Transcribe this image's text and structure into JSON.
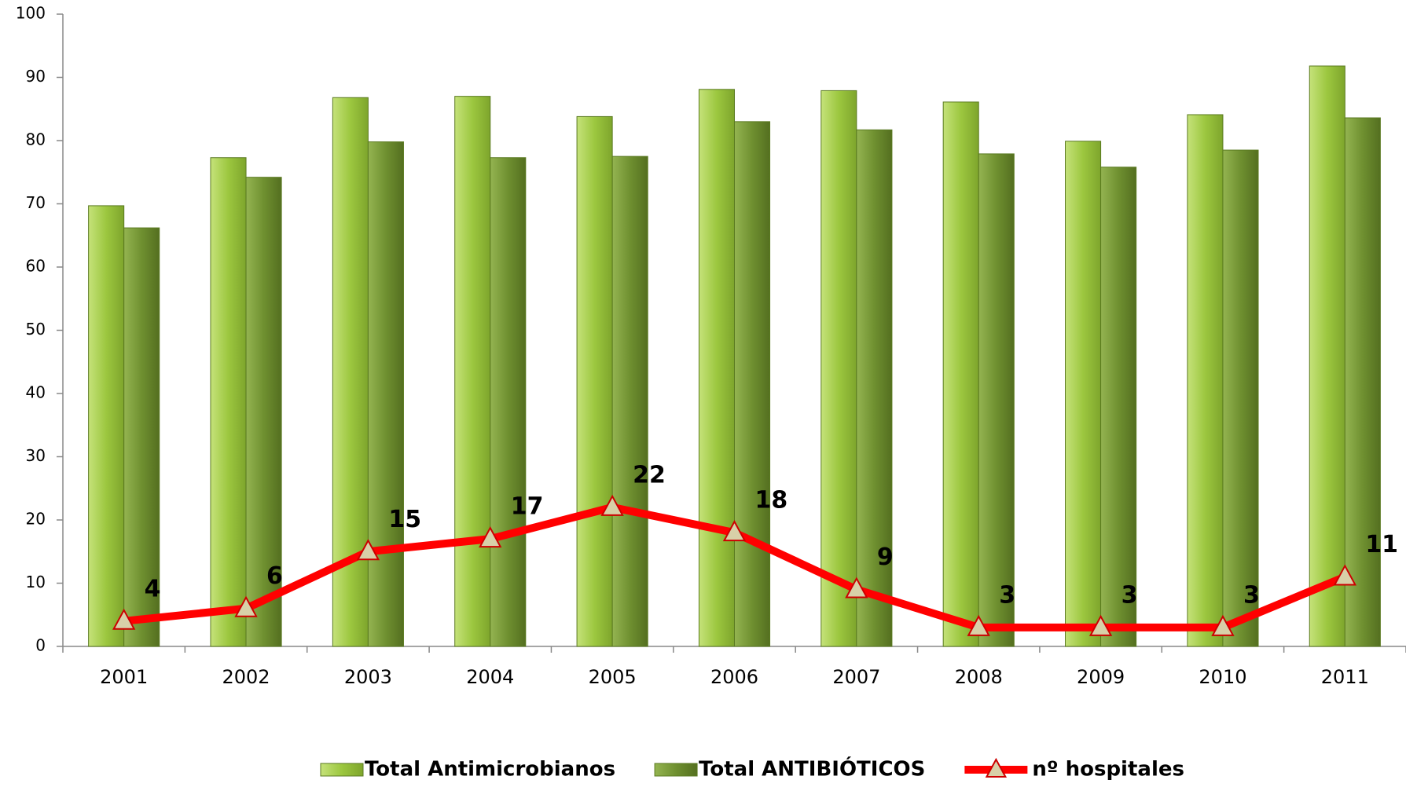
{
  "chart_data": {
    "type": "bar",
    "categories": [
      "2001",
      "2002",
      "2003",
      "2004",
      "2005",
      "2006",
      "2007",
      "2008",
      "2009",
      "2010",
      "2011"
    ],
    "series": [
      {
        "name": "Total Antimicrobianos",
        "type": "bar",
        "color": "#9cc73f",
        "values": [
          69.7,
          77.3,
          86.8,
          87,
          83.8,
          88.1,
          87.9,
          86.1,
          79.9,
          84.1,
          91.8
        ]
      },
      {
        "name": "Total ANTIBIÓTICOS",
        "type": "bar",
        "color": "#6f9030",
        "values": [
          66.2,
          74.2,
          79.8,
          77.3,
          77.5,
          83,
          81.7,
          77.9,
          75.8,
          78.5,
          83.6
        ]
      },
      {
        "name": "nº hospitales",
        "type": "line",
        "color": "#ff0000",
        "values": [
          4,
          6,
          15,
          17,
          22,
          18,
          9,
          3,
          3,
          3,
          11
        ]
      }
    ],
    "ylim": [
      0,
      100
    ],
    "yticks": [
      0,
      10,
      20,
      30,
      40,
      50,
      60,
      70,
      80,
      90,
      100
    ],
    "legend": "bottom"
  }
}
